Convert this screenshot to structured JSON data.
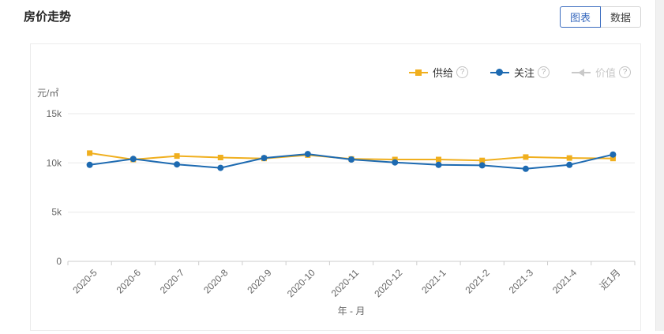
{
  "page": {
    "title": "房价走势"
  },
  "toolbar": {
    "chart_tab": "图表",
    "data_tab": "数据"
  },
  "colors": {
    "supply": "#f0af1e",
    "attention": "#1d6ab1",
    "disabled": "#c9c9c9",
    "active_tab": "#3a6bbf",
    "axis_line": "#cccccc",
    "grid_line": "#e9e9e9",
    "tick_text": "#666666"
  },
  "legend": {
    "help_symbol": "?",
    "items": [
      {
        "label": "供给",
        "marker": "square",
        "color": "#f0af1e",
        "disabled": false
      },
      {
        "label": "关注",
        "marker": "circle",
        "color": "#1d6ab1",
        "disabled": false
      },
      {
        "label": "价值",
        "marker": "triangle",
        "color": "#c9c9c9",
        "disabled": true
      }
    ]
  },
  "chart_data": {
    "type": "line",
    "title": "房价走势",
    "unit_label": "元/㎡",
    "xlabel": "年 - 月",
    "ylabel": "元/㎡",
    "ylim": [
      0,
      15000
    ],
    "grid": true,
    "legend_position": "top-right",
    "categories": [
      "2020-5",
      "2020-6",
      "2020-7",
      "2020-8",
      "2020-9",
      "2020-10",
      "2020-11",
      "2020-12",
      "2021-1",
      "2021-2",
      "2021-3",
      "2021-4",
      "近1月"
    ],
    "y_ticks": [
      {
        "value": 0,
        "label": "0"
      },
      {
        "value": 5000,
        "label": "5k"
      },
      {
        "value": 10000,
        "label": "10k"
      },
      {
        "value": 15000,
        "label": "15k"
      }
    ],
    "series": [
      {
        "name": "供给",
        "marker": "square",
        "color": "#f0af1e",
        "values": [
          11000,
          10350,
          10700,
          10550,
          10450,
          10800,
          10400,
          10350,
          10350,
          10250,
          10600,
          10500,
          10450
        ]
      },
      {
        "name": "关注",
        "marker": "circle",
        "color": "#1d6ab1",
        "values": [
          9800,
          10400,
          9850,
          9500,
          10500,
          10900,
          10350,
          10050,
          9800,
          9750,
          9400,
          9800,
          10850
        ]
      }
    ]
  }
}
